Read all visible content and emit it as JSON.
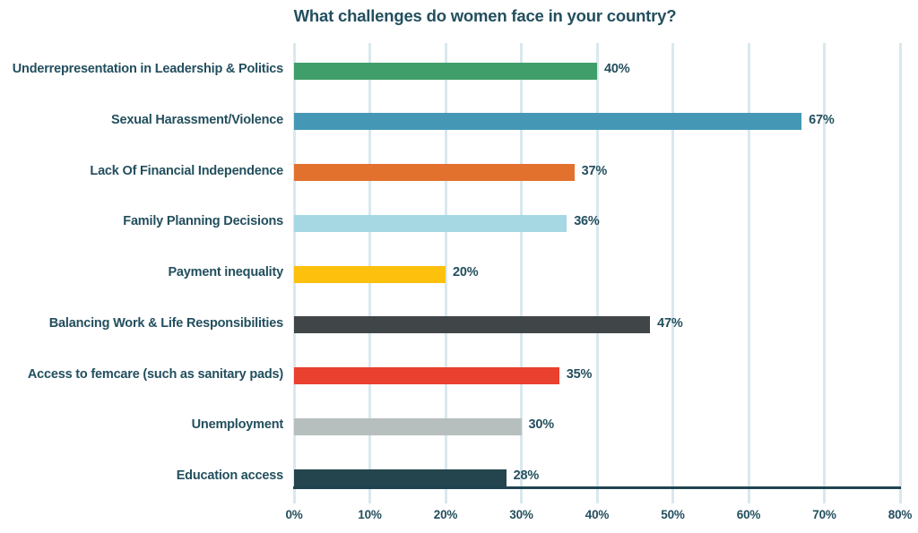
{
  "chart_data": {
    "type": "bar",
    "orientation": "horizontal",
    "title": "What challenges do women face in your country?",
    "categories": [
      "Underrepresentation in Leadership & Politics",
      "Sexual Harassment/Violence",
      "Lack Of Financial Independence",
      "Family Planning Decisions",
      "Payment inequality",
      "Balancing Work & Life Responsibilities",
      "Access to femcare (such as sanitary pads)",
      "Unemployment",
      "Education access"
    ],
    "values": [
      40,
      67,
      37,
      36,
      20,
      47,
      35,
      30,
      28
    ],
    "value_labels": [
      "40%",
      "67%",
      "37%",
      "36%",
      "20%",
      "47%",
      "35%",
      "30%",
      "28%"
    ],
    "bar_colors": [
      "#3f9e6a",
      "#4598b5",
      "#e2712e",
      "#a5d8e2",
      "#fdc00d",
      "#404548",
      "#e9402f",
      "#b7bebe",
      "#24454e"
    ],
    "xlabel": "",
    "ylabel": "",
    "xlim": [
      0,
      80
    ],
    "x_tick_labels": [
      "0%",
      "10%",
      "20%",
      "30%",
      "40%",
      "50%",
      "60%",
      "70%",
      "80%"
    ],
    "grid": true,
    "legend": false,
    "styles": {
      "text_color": "#234f5e",
      "gridline_color": "#d9e8ee",
      "axis_line_color": "#1e4450",
      "background": "#ffffff"
    }
  }
}
